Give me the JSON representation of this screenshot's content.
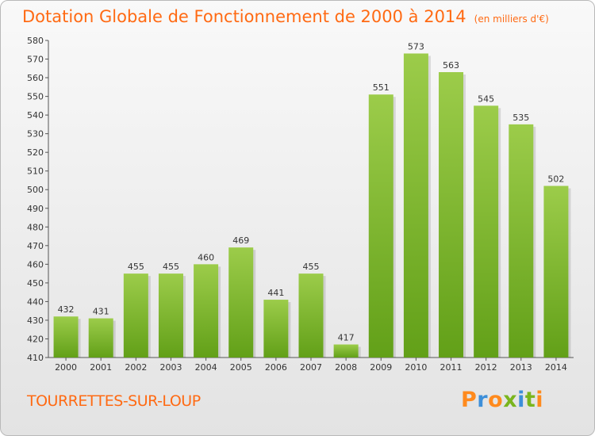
{
  "chart_data": {
    "type": "bar",
    "title": "Dotation Globale de Fonctionnement de 2000 à 2014",
    "subtitle": "(en milliers d'€)",
    "categories": [
      "2000",
      "2001",
      "2002",
      "2003",
      "2004",
      "2005",
      "2006",
      "2007",
      "2008",
      "2009",
      "2010",
      "2011",
      "2012",
      "2013",
      "2014"
    ],
    "values": [
      432,
      431,
      455,
      455,
      460,
      469,
      441,
      455,
      417,
      551,
      573,
      563,
      545,
      535,
      502
    ],
    "ylim": [
      410,
      580
    ],
    "yticks": [
      410,
      420,
      430,
      440,
      450,
      460,
      470,
      480,
      490,
      500,
      510,
      520,
      530,
      540,
      550,
      560,
      570,
      580
    ],
    "grid": false,
    "bar_color_top": "#9ccc4a",
    "bar_color_bottom": "#62a018"
  },
  "footer": {
    "commune": "TOURRETTES-SUR-LOUP",
    "logo_text": "Proxiti",
    "logo_colors": [
      "#ff8a1d",
      "#3d8fd9",
      "#ff8a1d",
      "#7ab51d",
      "#3d8fd9",
      "#7ab51d",
      "#ff8a1d"
    ]
  }
}
